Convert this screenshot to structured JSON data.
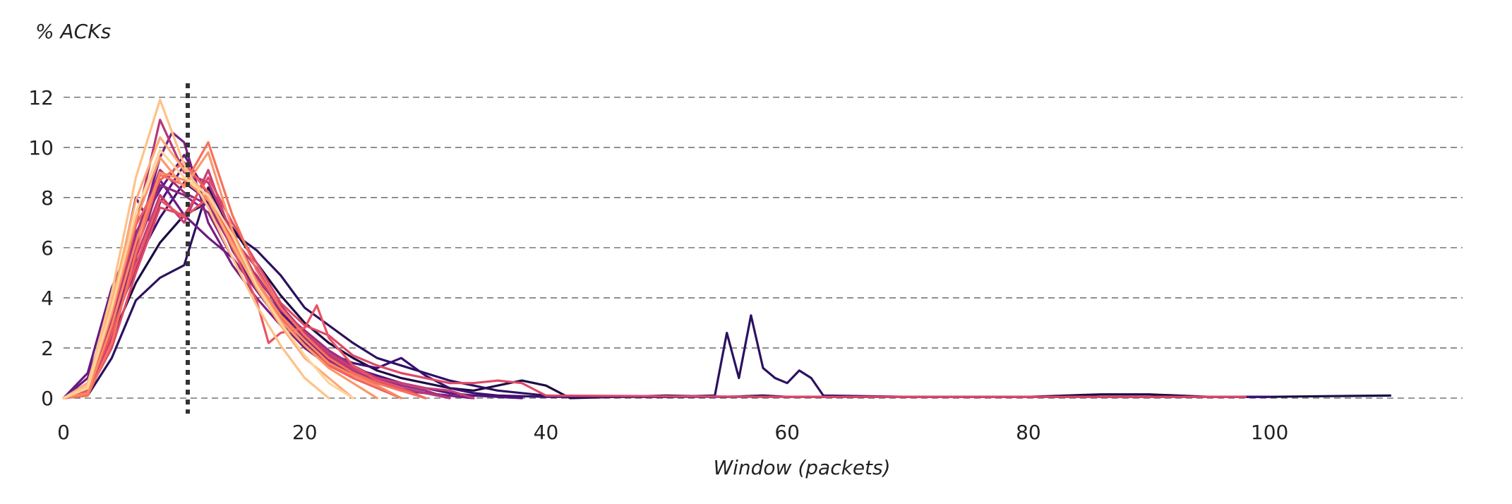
{
  "chart_data": {
    "type": "line",
    "ylabel": "% ACKs",
    "xlabel": "Window (packets)",
    "xlim": [
      0,
      116
    ],
    "ylim": [
      0,
      12.5
    ],
    "xticks": [
      0,
      20,
      40,
      60,
      80,
      100
    ],
    "yticks": [
      0,
      2,
      4,
      6,
      8,
      10,
      12
    ],
    "grid": "horizontal dashed",
    "legend": "none",
    "reference_line": {
      "x": 10.3,
      "style": "dotted",
      "color": "#333333"
    },
    "series": [
      {
        "color": "#1b0c41",
        "x": [
          0,
          2,
          4,
          6,
          8,
          10,
          12,
          14,
          16,
          18,
          20,
          22,
          24,
          26,
          28,
          30,
          32,
          34,
          36,
          38,
          40,
          42,
          50,
          55,
          58,
          60,
          70,
          80,
          86,
          90,
          95,
          100,
          105,
          110
        ],
        "y": [
          0,
          0.3,
          2.4,
          4.6,
          6.2,
          7.3,
          7.8,
          6.8,
          5.4,
          4.1,
          3.0,
          2.2,
          1.6,
          1.1,
          0.8,
          0.6,
          0.4,
          0.3,
          0.5,
          0.7,
          0.5,
          0,
          0.1,
          0.05,
          0.1,
          0.05,
          0.05,
          0.05,
          0.15,
          0.15,
          0.05,
          0.05,
          0.08,
          0.1
        ]
      },
      {
        "color": "#2c115f",
        "x": [
          0,
          2,
          4,
          6,
          8,
          10,
          12,
          14,
          16,
          18,
          20,
          22,
          24,
          26,
          28,
          30,
          32,
          34,
          36,
          40,
          45,
          50,
          54,
          55,
          56,
          57,
          58,
          59,
          60,
          61,
          62,
          63,
          70,
          80,
          90,
          100
        ],
        "y": [
          0,
          0.1,
          1.6,
          3.9,
          4.8,
          5.3,
          8.4,
          6.6,
          5.9,
          4.9,
          3.6,
          2.9,
          2.2,
          1.6,
          1.3,
          1.0,
          0.7,
          0.5,
          0.3,
          0.1,
          0.05,
          0.05,
          0.1,
          2.6,
          0.8,
          3.3,
          1.2,
          0.8,
          0.6,
          1.1,
          0.8,
          0.1,
          0.05,
          0.05,
          0.05,
          0.05
        ]
      },
      {
        "color": "#3b0f70",
        "x": [
          0,
          2,
          4,
          6,
          8,
          10,
          12,
          14,
          16,
          18,
          20,
          22,
          24,
          26,
          28,
          30,
          32,
          34,
          36,
          40,
          60,
          80,
          100
        ],
        "y": [
          0,
          0.4,
          2.8,
          5.4,
          7.2,
          8.6,
          7.9,
          6.4,
          4.8,
          3.6,
          2.4,
          1.8,
          1.4,
          1.2,
          1.6,
          0.9,
          0.4,
          0.2,
          0.1,
          0.05,
          0.05,
          0.05,
          0.05
        ]
      },
      {
        "color": "#51127c",
        "x": [
          0,
          2,
          4,
          6,
          8,
          10,
          12,
          14,
          16,
          18,
          20,
          22,
          24,
          26,
          28,
          30,
          32,
          34,
          38
        ],
        "y": [
          0,
          0.6,
          2.9,
          5.1,
          7.8,
          9.3,
          7.7,
          6.1,
          4.6,
          3.4,
          2.5,
          1.8,
          1.2,
          0.9,
          0.6,
          0.4,
          0.2,
          0.1,
          0
        ]
      },
      {
        "color": "#641a80",
        "x": [
          0,
          2,
          4,
          6,
          8,
          10,
          12,
          14,
          16,
          18,
          20,
          22,
          24,
          26,
          28,
          30,
          34
        ],
        "y": [
          0,
          1.0,
          4.4,
          6.6,
          8.3,
          9.7,
          8.1,
          5.9,
          4.3,
          3.1,
          2.2,
          1.5,
          1.0,
          0.6,
          0.4,
          0.2,
          0
        ]
      },
      {
        "color": "#6a1c81",
        "x": [
          0,
          2,
          4,
          6,
          7,
          8,
          10,
          12,
          14,
          16,
          18,
          20,
          22,
          24,
          26,
          28,
          30,
          34
        ],
        "y": [
          0,
          0.8,
          3.6,
          8.0,
          7.1,
          8.7,
          7.3,
          6.4,
          5.6,
          4.3,
          3.0,
          2.0,
          1.3,
          0.9,
          0.6,
          0.4,
          0.2,
          0
        ]
      },
      {
        "color": "#7a1e81",
        "x": [
          0,
          2,
          4,
          6,
          8,
          9,
          10,
          12,
          14,
          16,
          18,
          20,
          22,
          24,
          26,
          28,
          30,
          32,
          34
        ],
        "y": [
          0,
          0.3,
          2.3,
          6.1,
          9.6,
          10.6,
          10.2,
          7.0,
          5.3,
          4.0,
          2.9,
          2.1,
          1.4,
          0.9,
          0.6,
          0.3,
          0.2,
          0.1,
          0
        ]
      },
      {
        "color": "#8c2981",
        "x": [
          0,
          2,
          4,
          6,
          8,
          10,
          12,
          14,
          16,
          18,
          20,
          22,
          24,
          26,
          28,
          30
        ],
        "y": [
          0,
          0.2,
          2.6,
          5.9,
          8.5,
          8.1,
          7.4,
          5.6,
          4.3,
          3.3,
          2.4,
          1.5,
          1.0,
          0.6,
          0.3,
          0
        ]
      },
      {
        "color": "#9f2f7f",
        "x": [
          0,
          2,
          4,
          6,
          8,
          10,
          12,
          14,
          16,
          18,
          20,
          22,
          24,
          26,
          28,
          30,
          32
        ],
        "y": [
          0,
          0.4,
          3.1,
          6.5,
          9.1,
          8.2,
          7.7,
          6.0,
          4.9,
          3.5,
          2.7,
          1.9,
          1.3,
          0.8,
          0.5,
          0.3,
          0
        ]
      },
      {
        "color": "#b73779",
        "x": [
          0,
          2,
          4,
          6,
          8,
          10,
          12,
          14,
          16,
          18,
          20,
          22,
          24,
          26,
          28,
          30,
          32
        ],
        "y": [
          0,
          0.3,
          2.7,
          6.9,
          11.1,
          9.0,
          8.6,
          6.6,
          4.8,
          3.7,
          2.6,
          1.7,
          1.1,
          0.7,
          0.4,
          0.2,
          0
        ]
      },
      {
        "color": "#c83e73",
        "x": [
          0,
          2,
          4,
          6,
          8,
          10,
          12,
          14,
          16,
          18,
          20,
          22,
          24,
          26,
          28,
          30,
          32,
          34
        ],
        "y": [
          0,
          0.2,
          2.4,
          5.6,
          8.1,
          7.0,
          9.1,
          6.4,
          5.2,
          3.6,
          2.6,
          1.8,
          1.2,
          0.8,
          0.6,
          0.4,
          0.3,
          0
        ]
      },
      {
        "color": "#de4968",
        "x": [
          0,
          2,
          4,
          6,
          8,
          10,
          12,
          14,
          16,
          18,
          20,
          22,
          24,
          26,
          28,
          30,
          32,
          34,
          36,
          38,
          40,
          60,
          80,
          98
        ],
        "y": [
          0,
          0.2,
          2.0,
          5.0,
          7.6,
          7.3,
          8.8,
          7.0,
          5.4,
          3.8,
          2.9,
          2.5,
          1.7,
          1.3,
          1.0,
          0.8,
          0.6,
          0.6,
          0.7,
          0.6,
          0.1,
          0.05,
          0.05,
          0.05
        ]
      },
      {
        "color": "#e95462",
        "x": [
          0,
          2,
          4,
          6,
          8,
          10,
          12,
          14,
          16,
          17,
          18,
          20,
          21,
          22,
          24,
          26,
          28,
          30
        ],
        "y": [
          0,
          0.3,
          2.6,
          5.3,
          7.9,
          7.2,
          8.0,
          6.0,
          3.9,
          2.2,
          2.6,
          2.8,
          3.7,
          2.4,
          1.3,
          0.7,
          0.4,
          0
        ]
      },
      {
        "color": "#f1605d",
        "x": [
          0,
          2,
          4,
          6,
          8,
          10,
          12,
          14,
          16,
          18,
          20,
          22,
          24,
          26,
          28
        ],
        "y": [
          0,
          0.4,
          3.3,
          6.9,
          8.7,
          9.4,
          8.2,
          6.3,
          4.4,
          3.2,
          2.1,
          1.3,
          0.8,
          0.4,
          0
        ]
      },
      {
        "color": "#f7705c",
        "x": [
          0,
          2,
          4,
          6,
          8,
          10,
          12,
          14,
          16,
          18,
          20,
          22,
          24,
          26,
          28,
          30
        ],
        "y": [
          0,
          0.1,
          2.2,
          5.8,
          8.9,
          8.5,
          10.2,
          7.3,
          5.1,
          3.6,
          2.5,
          1.6,
          1.0,
          0.6,
          0.3,
          0
        ]
      },
      {
        "color": "#fb8861",
        "x": [
          0,
          2,
          4,
          6,
          8,
          10,
          12,
          14,
          16,
          18,
          20,
          22,
          24,
          26,
          28
        ],
        "y": [
          0,
          0.2,
          2.9,
          6.2,
          9.0,
          8.7,
          7.9,
          6.2,
          4.7,
          3.3,
          2.3,
          1.4,
          0.9,
          0.5,
          0
        ]
      },
      {
        "color": "#fd9668",
        "x": [
          0,
          2,
          4,
          6,
          8,
          10,
          12,
          14,
          16,
          18,
          20,
          22,
          24,
          26
        ],
        "y": [
          0,
          0.4,
          3.4,
          7.1,
          9.6,
          8.4,
          9.8,
          6.7,
          4.6,
          3.1,
          2.1,
          1.2,
          0.6,
          0
        ]
      },
      {
        "color": "#feaa74",
        "x": [
          0,
          2,
          4,
          6,
          8,
          10,
          12,
          14,
          16,
          18,
          20,
          22,
          24
        ],
        "y": [
          0,
          0.6,
          3.8,
          7.9,
          10.4,
          9.1,
          8.0,
          6.1,
          4.4,
          2.9,
          1.6,
          0.8,
          0
        ]
      },
      {
        "color": "#fec287",
        "x": [
          0,
          2,
          4,
          6,
          8,
          10,
          12,
          14,
          16,
          18,
          20,
          22
        ],
        "y": [
          0,
          0.5,
          4.2,
          8.8,
          11.9,
          9.3,
          7.6,
          5.6,
          3.7,
          2.1,
          0.8,
          0
        ]
      },
      {
        "color": "#fdd49b",
        "x": [
          0,
          2,
          4,
          6,
          8,
          10,
          12,
          14,
          16,
          18,
          20,
          22,
          24
        ],
        "y": [
          0,
          0.4,
          3.6,
          7.4,
          9.9,
          8.8,
          8.1,
          6.5,
          4.5,
          3.0,
          1.7,
          0.6,
          0
        ]
      }
    ]
  }
}
